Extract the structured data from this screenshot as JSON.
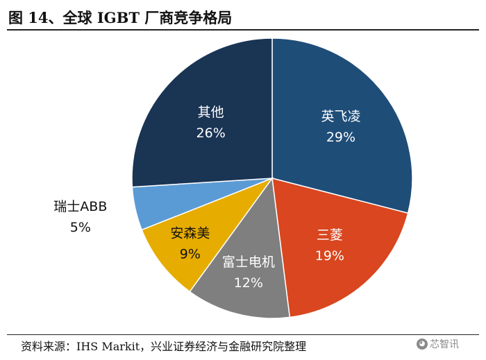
{
  "header": {
    "title": "图 14、全球 IGBT 厂商竞争格局"
  },
  "footer": {
    "source": "资料来源：IHS Markit，兴业证券经济与金融研究院整理",
    "watermark": "芯智讯"
  },
  "chart_data": {
    "type": "pie",
    "categories": [
      "英飞凌",
      "三菱",
      "富士电机",
      "安森美",
      "瑞士ABB",
      "其他"
    ],
    "values": [
      29,
      19,
      12,
      9,
      5,
      26
    ],
    "value_labels": [
      "29%",
      "19%",
      "12%",
      "9%",
      "5%",
      "26%"
    ],
    "colors": [
      "#1e4d78",
      "#d9461f",
      "#7f7f7f",
      "#e6ac00",
      "#5b9bd5",
      "#1a3454"
    ],
    "label_colors": [
      "#ffffff",
      "#ffffff",
      "#ffffff",
      "#111111",
      "#111111",
      "#ffffff"
    ],
    "start_angle_deg": 0,
    "direction": "clockwise"
  }
}
